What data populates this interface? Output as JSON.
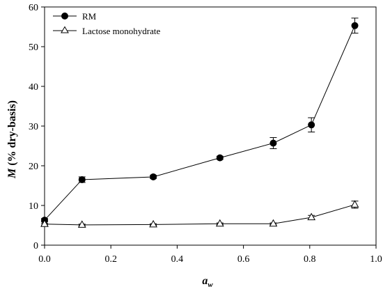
{
  "chart_data": {
    "type": "line",
    "xlabel_main": "a",
    "xlabel_sub": "w",
    "ylabel_main": "M",
    "ylabel_rest": " (% dry-basis)",
    "xlim": [
      0.0,
      1.0
    ],
    "ylim": [
      0,
      60
    ],
    "xticks": [
      "0.0",
      "0.2",
      "0.4",
      "0.6",
      "0.8",
      "1.0"
    ],
    "yticks": [
      "0",
      "10",
      "20",
      "30",
      "40",
      "50",
      "60"
    ],
    "legend_position": "top-left",
    "grid": false,
    "series": [
      {
        "name": "RM",
        "marker": "filled-circle",
        "color": "#000000",
        "x": [
          0.0,
          0.113,
          0.328,
          0.529,
          0.69,
          0.805,
          0.936
        ],
        "y": [
          6.3,
          16.5,
          17.2,
          22.0,
          25.7,
          30.3,
          55.3
        ],
        "err": [
          0.4,
          0.7,
          0.4,
          0.4,
          1.4,
          1.8,
          1.9
        ]
      },
      {
        "name": "Lactose monohydrate",
        "marker": "open-triangle",
        "color": "#000000",
        "x": [
          0.0,
          0.113,
          0.328,
          0.529,
          0.69,
          0.805,
          0.936
        ],
        "y": [
          5.3,
          5.1,
          5.2,
          5.4,
          5.4,
          7.0,
          10.2
        ],
        "err": [
          0.2,
          0.2,
          0.2,
          0.2,
          0.2,
          0.5,
          0.9
        ]
      }
    ]
  }
}
